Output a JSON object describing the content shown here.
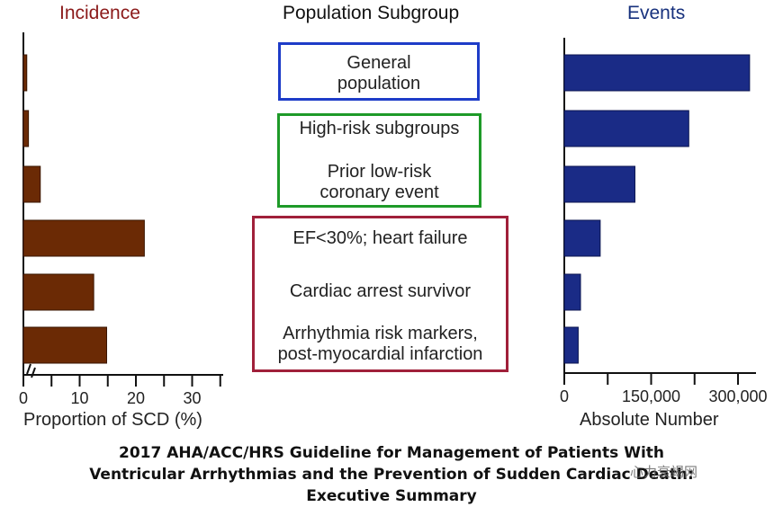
{
  "headers": {
    "incidence": "Incidence",
    "population": "Population Subgroup",
    "events": "Events"
  },
  "boxes": {
    "general": [
      "General",
      "population"
    ],
    "high_risk": [
      "High-risk subgroups",
      "Prior low-risk",
      "coronary event"
    ],
    "red": [
      "EF<30%; heart failure",
      "Cardiac arrest survivor",
      "Arrhythmia risk markers,",
      "post-myocardial infarction"
    ]
  },
  "colors": {
    "incidence_bar": "#6b2a05",
    "events_bar": "#1a2b86",
    "box_general": "#1e3cc8",
    "box_high_risk": "#1e9a28",
    "box_red": "#a0203a"
  },
  "chart_data": [
    {
      "type": "bar",
      "orientation": "horizontal",
      "title": "Incidence",
      "xlabel": "Proportion of SCD (%)",
      "xlim": [
        0,
        35
      ],
      "xticks": [
        "0",
        "10",
        "20",
        "30"
      ],
      "axis_break": true,
      "values": [
        0.6,
        0.9,
        3,
        21.5,
        12.5,
        14.8
      ]
    },
    {
      "type": "bar",
      "orientation": "horizontal",
      "title": "Events",
      "xlabel": "Absolute Number",
      "xlim": [
        0,
        340000
      ],
      "xticks": [
        "0",
        "150,000",
        "300,000"
      ],
      "values": [
        320000,
        215000,
        122000,
        62000,
        28000,
        24000
      ]
    }
  ],
  "caption": [
    "2017 AHA/ACC/HRS Guideline for Management of Patients With",
    "Ventricular Arrhythmias and the Prevention of Sudden Cardiac Death:",
    "Executive Summary"
  ],
  "watermark": "心力衰竭网"
}
